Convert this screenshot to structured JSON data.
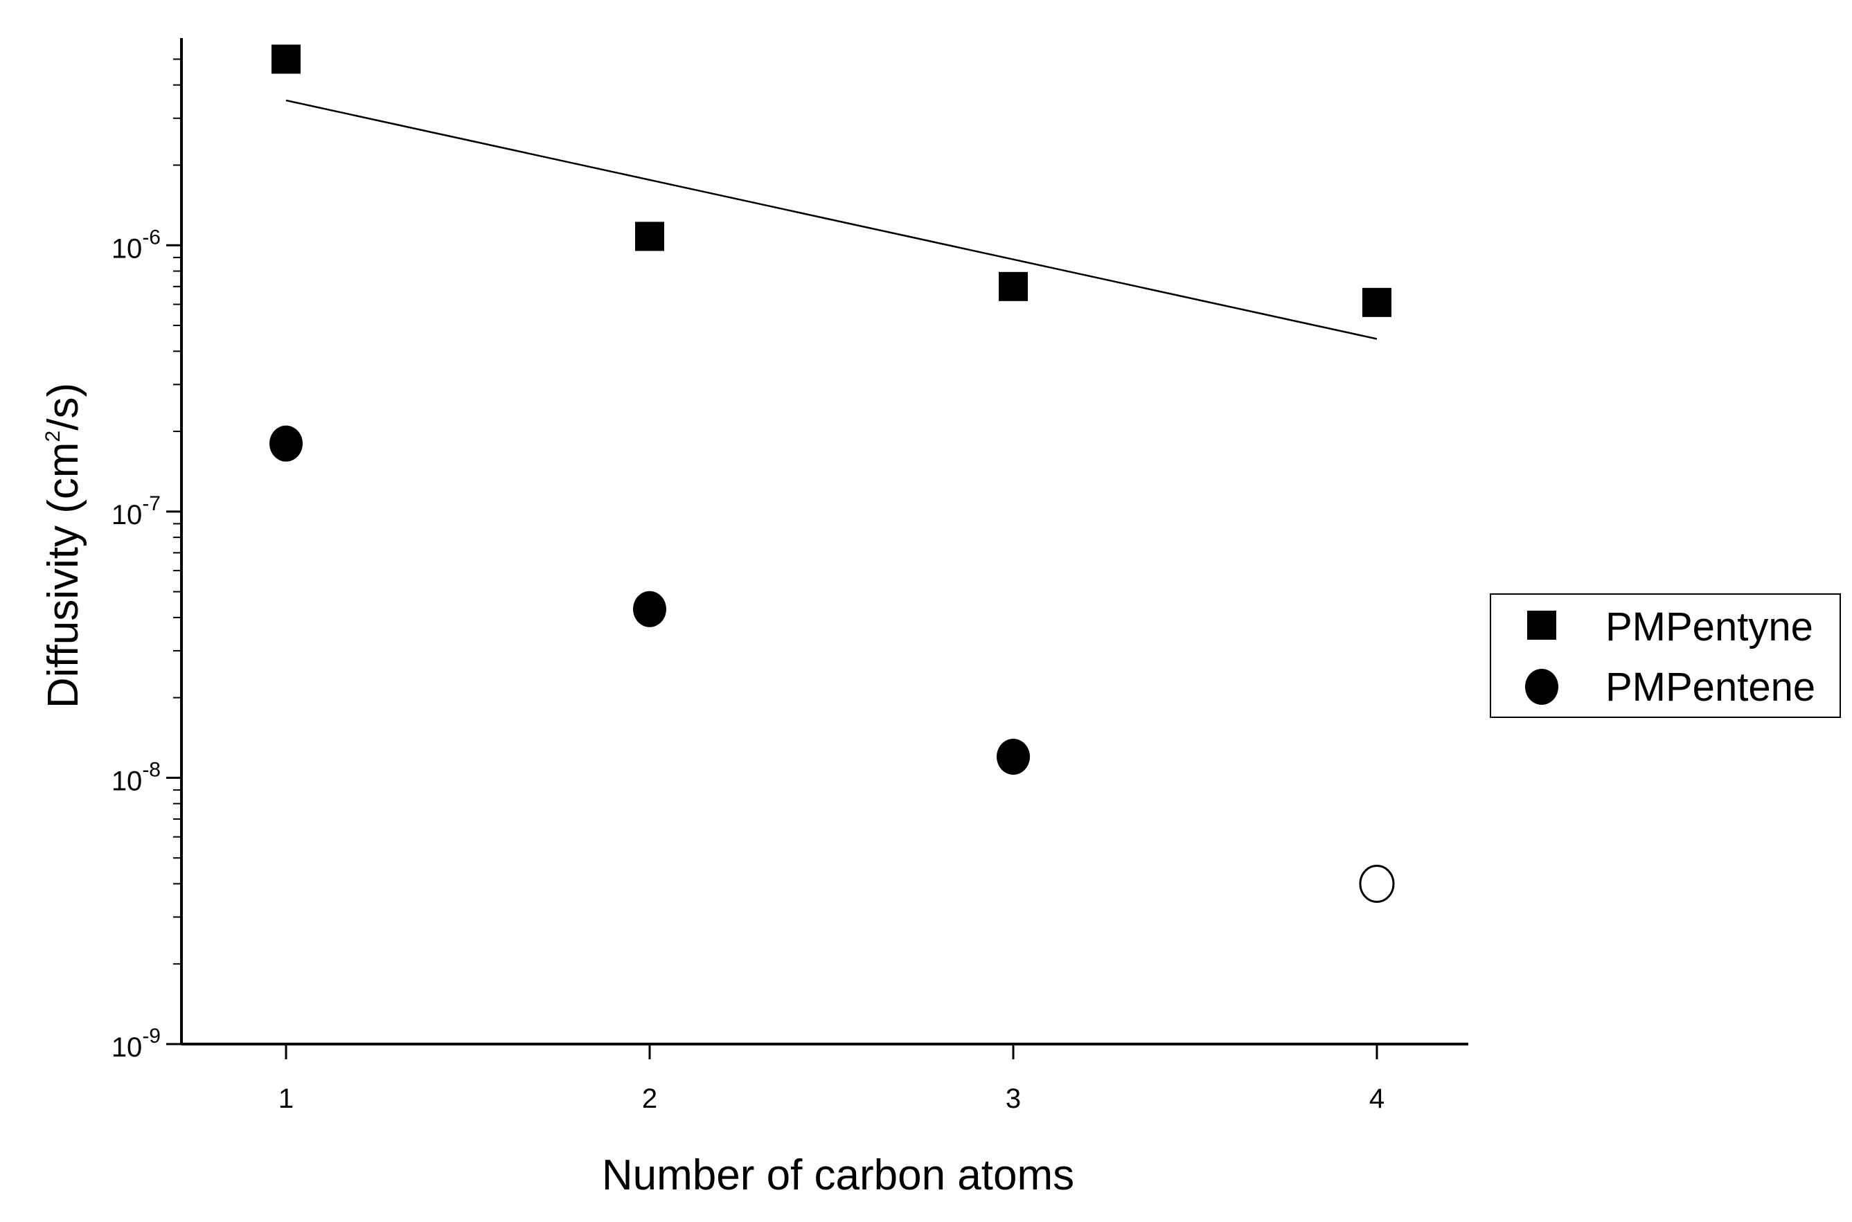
{
  "chart_data": {
    "type": "scatter",
    "xlabel": "Number of carbon atoms",
    "ylabel": {
      "prefix": "Diffusivity (cm",
      "superscript": "2",
      "suffix": "/s)"
    },
    "xlim": [
      0.72,
      4.25
    ],
    "ylim": [
      1e-09,
      6e-06
    ],
    "y_scale": "log",
    "x_ticks": [
      "1",
      "2",
      "3",
      "4"
    ],
    "y_ticks": [
      {
        "base": "10",
        "exp": "-9",
        "value": 1e-09
      },
      {
        "base": "10",
        "exp": "-8",
        "value": 1e-08
      },
      {
        "base": "10",
        "exp": "-7",
        "value": 1e-07
      },
      {
        "base": "10",
        "exp": "-6",
        "value": 1e-06
      }
    ],
    "grid": false,
    "legend_position": "right",
    "series": [
      {
        "name": "PMPentyne",
        "marker": "square",
        "fill": "#000000",
        "x": [
          1,
          2,
          3,
          4
        ],
        "y": [
          5e-06,
          1.08e-06,
          7e-07,
          6.1e-07
        ]
      },
      {
        "name": "PMPentene",
        "marker": "circle",
        "fill": "#000000",
        "x": [
          1,
          2,
          3
        ],
        "y": [
          1.8e-07,
          4.3e-08,
          1.2e-08
        ]
      },
      {
        "marker": "circle-open",
        "fill": "none",
        "x": [
          4
        ],
        "y": [
          4e-09
        ]
      }
    ],
    "trendline": {
      "x": [
        1,
        4
      ],
      "y": [
        3.5e-06,
        4.45e-07
      ]
    }
  }
}
